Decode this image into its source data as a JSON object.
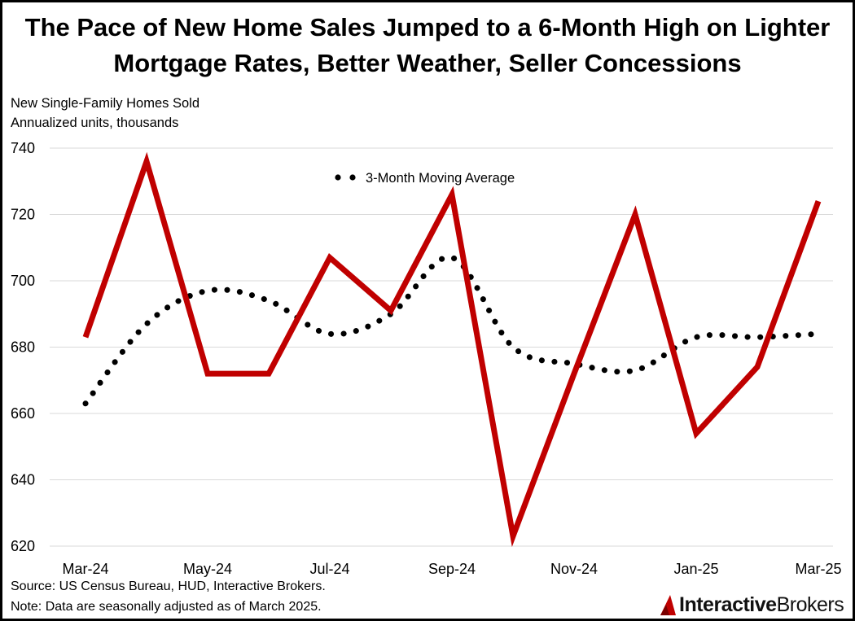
{
  "title_line1": "The Pace of New Home Sales Jumped to a 6-Month High on Lighter",
  "title_line2": "Mortgage Rates, Better Weather, Seller Concessions",
  "subtitle_line1": "New Single-Family Homes Sold",
  "subtitle_line2": "Annualized units, thousands",
  "source_note": "Source: US Census Bureau, HUD, Interactive Brokers.",
  "data_note": "Note: Data are seasonally adjusted as of March 2025.",
  "logo": {
    "part1": "Interactive",
    "part2": "Brokers",
    "icon": "interactive-brokers-logo-icon"
  },
  "colors": {
    "sales_line": "#c00000",
    "moving_avg": "#000000",
    "grid": "#d9d9d9"
  },
  "chart_data": {
    "type": "line",
    "title": "The Pace of New Home Sales Jumped to a 6-Month High on Lighter Mortgage Rates, Better Weather, Seller Concessions",
    "ylabel": "Annualized units, thousands",
    "xlabel": "",
    "ylim": [
      620,
      740
    ],
    "yticks": [
      620,
      640,
      660,
      680,
      700,
      720,
      740
    ],
    "grid": true,
    "legend_position": "top-center",
    "x": [
      "Mar-24",
      "Apr-24",
      "May-24",
      "Jun-24",
      "Jul-24",
      "Aug-24",
      "Sep-24",
      "Oct-24",
      "Nov-24",
      "Dec-24",
      "Jan-25",
      "Feb-25",
      "Mar-25"
    ],
    "x_tick_labels": [
      "Mar-24",
      "",
      "May-24",
      "",
      "Jul-24",
      "",
      "Sep-24",
      "",
      "Nov-24",
      "",
      "Jan-25",
      "",
      "Mar-25"
    ],
    "series": [
      {
        "name": "New Single-Family Homes Sold",
        "style": "solid",
        "show_in_legend": false,
        "values": [
          683,
          736,
          672,
          672,
          707,
          691,
          726,
          623,
          672,
          720,
          654,
          674,
          724
        ]
      },
      {
        "name": "3-Month Moving Average",
        "style": "dotted",
        "show_in_legend": true,
        "values": [
          663,
          687,
          697,
          694,
          684,
          690,
          707,
          680,
          675,
          673,
          683,
          683,
          684
        ]
      }
    ]
  }
}
